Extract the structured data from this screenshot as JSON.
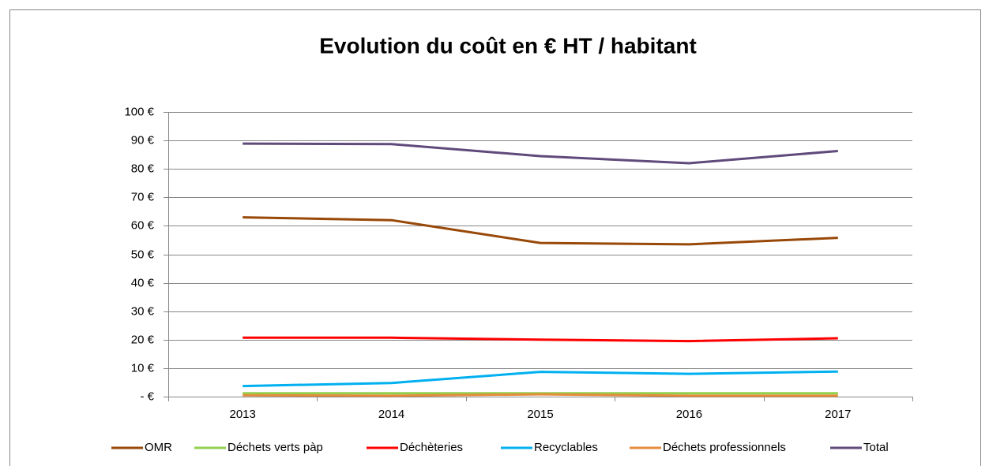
{
  "chart_data": {
    "type": "line",
    "title": "Evolution du coût en € HT / habitant",
    "categories": [
      "2013",
      "2014",
      "2015",
      "2016",
      "2017"
    ],
    "series": [
      {
        "name": "OMR",
        "color": "#984807",
        "values": [
          63,
          62,
          54,
          53.5,
          55.8
        ]
      },
      {
        "name": "Déchets verts pàp",
        "color": "#92d050",
        "values": [
          1.2,
          1.2,
          1.2,
          1.2,
          1.2
        ]
      },
      {
        "name": "Déchèteries",
        "color": "#ff0000",
        "values": [
          20.7,
          20.7,
          20,
          19.5,
          20.5
        ]
      },
      {
        "name": "Recyclables",
        "color": "#00b0f0",
        "values": [
          3.7,
          4.8,
          8.7,
          8,
          8.8
        ]
      },
      {
        "name": "Déchets professionnels",
        "color": "#e48b3c",
        "values": [
          0.5,
          0.3,
          0.8,
          0.3,
          0.3
        ]
      },
      {
        "name": "Total",
        "color": "#604a7b",
        "values": [
          88.9,
          88.7,
          84.5,
          82,
          86.3
        ]
      }
    ],
    "ylim": [
      0,
      100
    ],
    "yticks": [
      {
        "value": 0,
        "label": "-  €"
      },
      {
        "value": 10,
        "label": "10 €"
      },
      {
        "value": 20,
        "label": "20 €"
      },
      {
        "value": 30,
        "label": "30 €"
      },
      {
        "value": 40,
        "label": "40 €"
      },
      {
        "value": 50,
        "label": "50 €"
      },
      {
        "value": 60,
        "label": "60 €"
      },
      {
        "value": 70,
        "label": "70 €"
      },
      {
        "value": 80,
        "label": "80 €"
      },
      {
        "value": 90,
        "label": "90 €"
      },
      {
        "value": 100,
        "label": "100 €"
      }
    ],
    "grid": true,
    "legend": "bottom"
  }
}
